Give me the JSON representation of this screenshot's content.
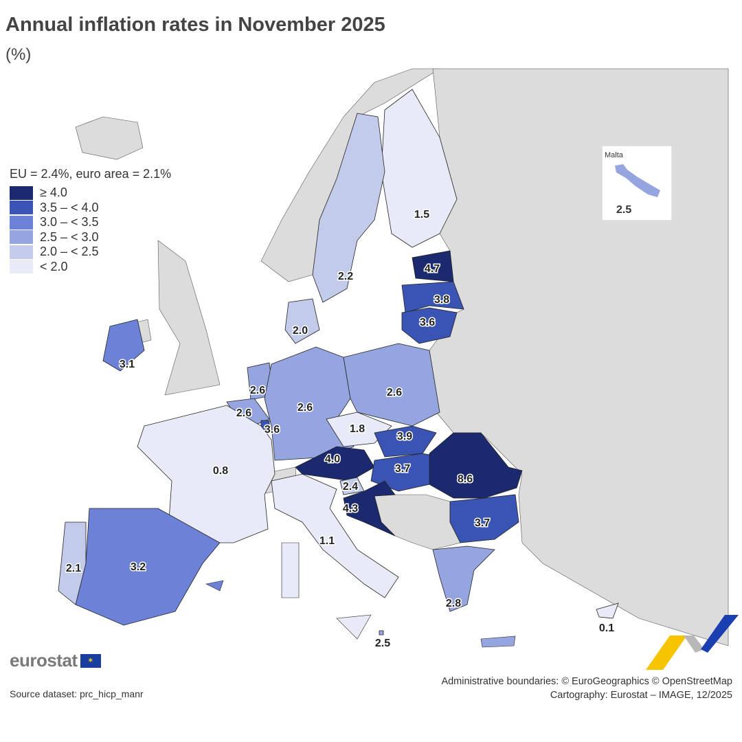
{
  "title": "Annual inflation rates in November 2025",
  "subtitle": "(%)",
  "legend": {
    "heading": "EU = 2.4%, euro area = 2.1%",
    "classes": [
      {
        "label": "≥ 4.0",
        "color": "#1b2a6e"
      },
      {
        "label": "3.5 – < 4.0",
        "color": "#3a54b4"
      },
      {
        "label": "3.0 – < 3.5",
        "color": "#6b82d6"
      },
      {
        "label": "2.5 – < 3.0",
        "color": "#95a5df"
      },
      {
        "label": "2.0 – < 2.5",
        "color": "#c3cbeb"
      },
      {
        "label": "< 2.0",
        "color": "#e8ebf7"
      }
    ]
  },
  "colors": {
    "non_eu_land": "#dcdcdc",
    "border": "#222222"
  },
  "values": [
    "1.5",
    "2.2",
    "4.7",
    "3.8",
    "3.6",
    "2.0",
    "3.1",
    "2.6",
    "2.6",
    "3.6",
    "2.6",
    "2.6",
    "1.8",
    "3.9",
    "4.0",
    "3.7",
    "8.6",
    "3.7",
    "2.4",
    "4.3",
    "0.8",
    "3.2",
    "2.1",
    "1.1",
    "2.8",
    "0.1",
    "2.5"
  ],
  "inset": {
    "name": "Malta",
    "value": "2.5"
  },
  "logo": {
    "text": "eurostat"
  },
  "source": "Source dataset: prc_hicp_manr",
  "credits": {
    "line1": "Administrative boundaries: © EuroGeographics © OpenStreetMap",
    "line2": "Cartography: Eurostat – IMAGE, 12/2025"
  }
}
